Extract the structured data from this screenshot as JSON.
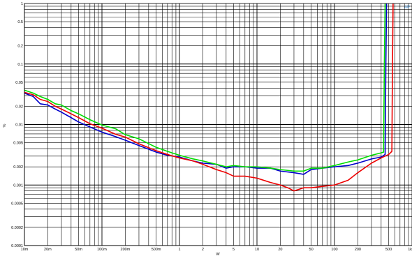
{
  "chart_data": {
    "type": "line",
    "title": "",
    "xlabel": "W",
    "ylabel": "%",
    "corner_label": "AP",
    "xscale": "log",
    "yscale": "log",
    "xlim": [
      0.01,
      1000
    ],
    "ylim": [
      0.0001,
      1
    ],
    "grid": true,
    "x_ticks": [
      {
        "v": 0.01,
        "label": "10m"
      },
      {
        "v": 0.02,
        "label": "20m"
      },
      {
        "v": 0.05,
        "label": "50m"
      },
      {
        "v": 0.1,
        "label": "100m"
      },
      {
        "v": 0.2,
        "label": "200m"
      },
      {
        "v": 0.5,
        "label": "500m"
      },
      {
        "v": 1,
        "label": "1"
      },
      {
        "v": 2,
        "label": "2"
      },
      {
        "v": 5,
        "label": "5"
      },
      {
        "v": 10,
        "label": "10"
      },
      {
        "v": 20,
        "label": "20"
      },
      {
        "v": 50,
        "label": "50"
      },
      {
        "v": 100,
        "label": "100"
      },
      {
        "v": 200,
        "label": "200"
      },
      {
        "v": 500,
        "label": "500"
      },
      {
        "v": 1000,
        "label": "1k"
      }
    ],
    "y_ticks": [
      {
        "v": 1,
        "label": "1"
      },
      {
        "v": 0.5,
        "label": "0.5"
      },
      {
        "v": 0.2,
        "label": "0.2"
      },
      {
        "v": 0.1,
        "label": "0.1"
      },
      {
        "v": 0.05,
        "label": "0.05"
      },
      {
        "v": 0.02,
        "label": "0.02"
      },
      {
        "v": 0.01,
        "label": "0.01"
      },
      {
        "v": 0.005,
        "label": "0.005"
      },
      {
        "v": 0.002,
        "label": "0.002"
      },
      {
        "v": 0.001,
        "label": "0.001"
      },
      {
        "v": 0.0005,
        "label": "0.0005"
      },
      {
        "v": 0.0002,
        "label": "0.0002"
      },
      {
        "v": 0.0001,
        "label": "0.0001"
      }
    ],
    "series": [
      {
        "color": "#0000cc",
        "x": [
          0.01,
          0.013,
          0.016,
          0.02,
          0.025,
          0.03,
          0.04,
          0.05,
          0.07,
          0.1,
          0.15,
          0.2,
          0.3,
          0.5,
          0.7,
          1,
          1.5,
          2,
          3,
          4,
          5,
          7,
          10,
          15,
          20,
          30,
          40,
          50,
          70,
          100,
          150,
          200,
          300,
          400,
          450,
          460,
          470
        ],
        "y": [
          0.033,
          0.029,
          0.022,
          0.021,
          0.018,
          0.016,
          0.013,
          0.011,
          0.0091,
          0.0075,
          0.0063,
          0.0055,
          0.0045,
          0.0035,
          0.0031,
          0.0029,
          0.0025,
          0.0023,
          0.0022,
          0.0019,
          0.002,
          0.002,
          0.0019,
          0.0019,
          0.0017,
          0.0016,
          0.0015,
          0.0018,
          0.0019,
          0.002,
          0.0021,
          0.0023,
          0.0027,
          0.0029,
          0.0032,
          0.1,
          1
        ]
      },
      {
        "color": "#00dd00",
        "x": [
          0.01,
          0.013,
          0.016,
          0.02,
          0.025,
          0.03,
          0.04,
          0.05,
          0.07,
          0.1,
          0.15,
          0.2,
          0.3,
          0.5,
          0.7,
          1,
          1.5,
          2,
          3,
          4,
          5,
          7,
          10,
          15,
          20,
          30,
          40,
          50,
          70,
          100,
          150,
          200,
          300,
          400,
          430,
          440,
          450
        ],
        "y": [
          0.037,
          0.033,
          0.029,
          0.026,
          0.022,
          0.021,
          0.017,
          0.015,
          0.012,
          0.0098,
          0.0085,
          0.0068,
          0.0058,
          0.0042,
          0.0036,
          0.0031,
          0.0027,
          0.0025,
          0.0022,
          0.002,
          0.0021,
          0.002,
          0.002,
          0.0019,
          0.0018,
          0.0017,
          0.0017,
          0.0019,
          0.0019,
          0.0021,
          0.0024,
          0.0026,
          0.0031,
          0.0034,
          0.0035,
          0.1,
          1
        ]
      },
      {
        "color": "#ee0000",
        "x": [
          0.01,
          0.013,
          0.016,
          0.02,
          0.025,
          0.03,
          0.04,
          0.05,
          0.07,
          0.1,
          0.15,
          0.2,
          0.3,
          0.5,
          0.7,
          1,
          1.5,
          2,
          3,
          4,
          5,
          7,
          10,
          15,
          20,
          25,
          30,
          35,
          40,
          50,
          70,
          100,
          150,
          200,
          300,
          400,
          500,
          550,
          560,
          570
        ],
        "y": [
          0.034,
          0.031,
          0.026,
          0.024,
          0.02,
          0.018,
          0.015,
          0.013,
          0.0103,
          0.0087,
          0.0069,
          0.0062,
          0.0048,
          0.0037,
          0.0032,
          0.0028,
          0.0025,
          0.0022,
          0.0018,
          0.0016,
          0.0014,
          0.0014,
          0.0013,
          0.0011,
          0.001,
          0.0009,
          0.0008,
          0.00085,
          0.0009,
          0.0009,
          0.00095,
          0.001,
          0.0012,
          0.0016,
          0.0023,
          0.0028,
          0.0032,
          0.0036,
          0.1,
          1
        ]
      }
    ]
  }
}
